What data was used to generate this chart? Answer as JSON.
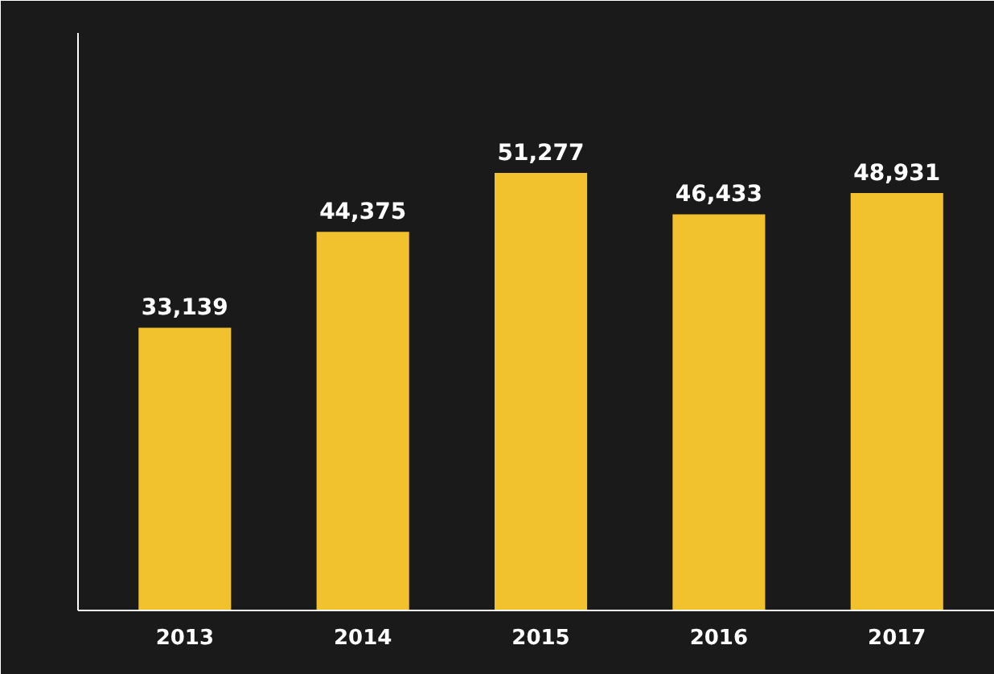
{
  "chart_data": {
    "type": "bar",
    "categories": [
      "2013",
      "2014",
      "2015",
      "2016",
      "2017"
    ],
    "values": [
      33139,
      44375,
      51277,
      46433,
      48931
    ],
    "value_labels": [
      "33,139",
      "44,375",
      "51,277",
      "46,433",
      "48,931"
    ],
    "color": "#f2c12e",
    "grid": false
  }
}
